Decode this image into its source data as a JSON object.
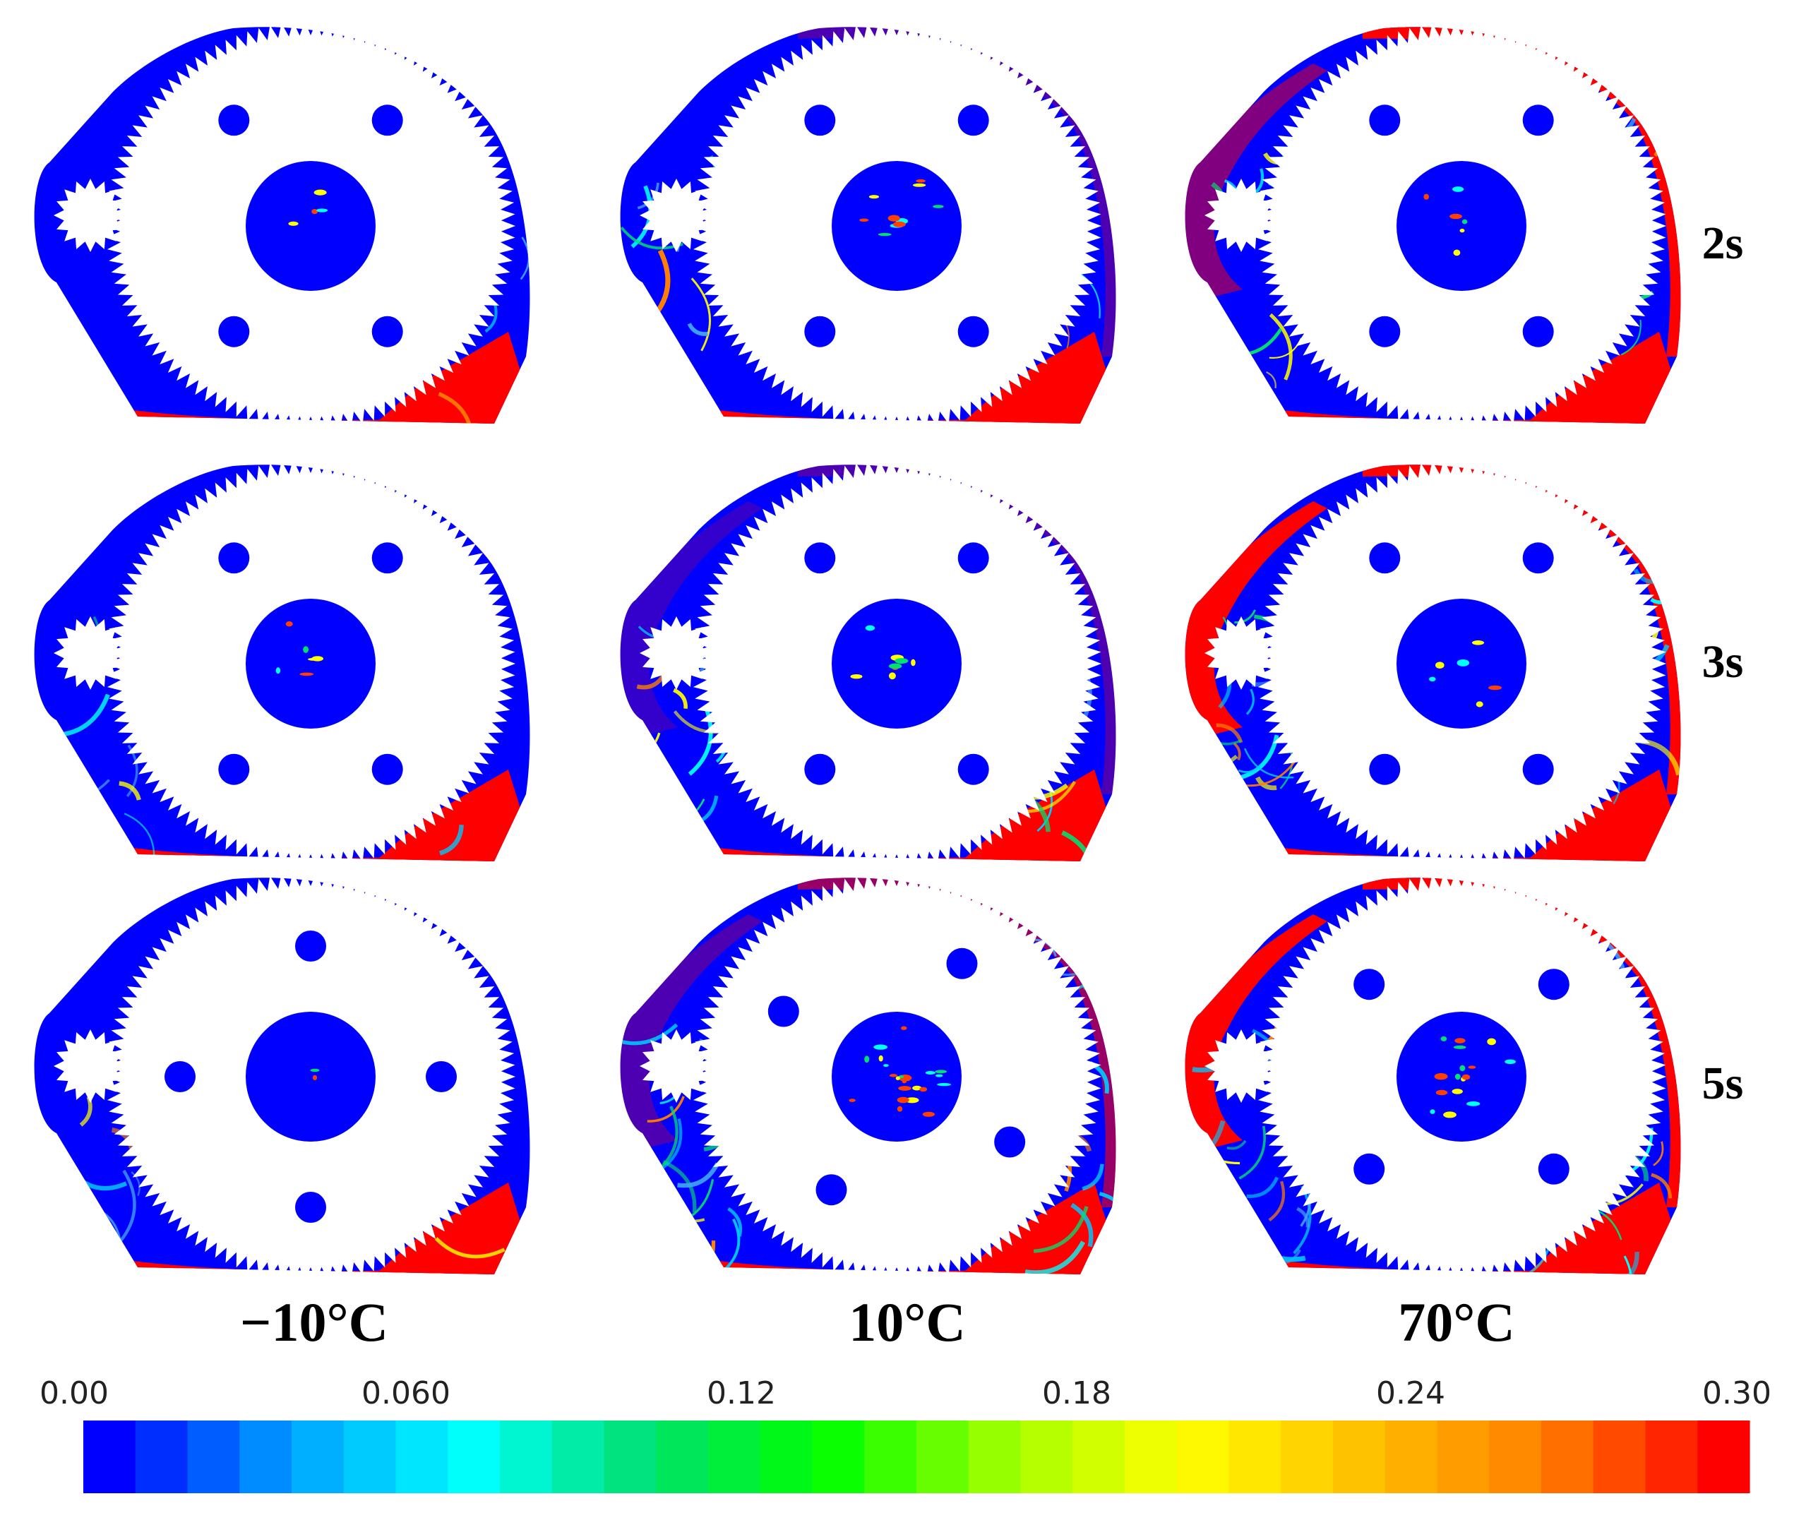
{
  "rows": [
    {
      "label": "2s"
    },
    {
      "label": "3s"
    },
    {
      "label": "5s"
    }
  ],
  "columns": [
    {
      "label": "−10°C"
    },
    {
      "label": "10°C"
    },
    {
      "label": "70°C"
    }
  ],
  "colorbar": {
    "min": 0.0,
    "max": 0.3,
    "tick_labels": [
      "0.00",
      "0.060",
      "0.12",
      "0.18",
      "0.24",
      "0.30"
    ],
    "band_count": 32,
    "colors": [
      "#0000ff",
      "#00a0ff",
      "#00ffff",
      "#00e070",
      "#00ff00",
      "#a0ff00",
      "#ffff00",
      "#ffc000",
      "#ff8000",
      "#ff0000"
    ]
  },
  "panel_colors": {
    "fluid": "#0000ff",
    "oil_rich": "#ff0000",
    "gear": "#ffffff"
  },
  "panels": [
    {
      "row": 0,
      "col": 0,
      "hole_angles": [
        -54,
        54,
        126,
        234
      ],
      "seed": 1,
      "streaks": 6,
      "left_red": 0,
      "top_red": 0,
      "hub_spots": 4
    },
    {
      "row": 0,
      "col": 1,
      "hole_angles": [
        -54,
        54,
        126,
        234
      ],
      "seed": 2,
      "streaks": 18,
      "left_red": 0,
      "top_red": 0.3,
      "hub_spots": 10
    },
    {
      "row": 0,
      "col": 2,
      "hole_angles": [
        -54,
        54,
        126,
        234
      ],
      "seed": 3,
      "streaks": 30,
      "left_red": 0.5,
      "top_red": 1,
      "hub_spots": 6
    },
    {
      "row": 1,
      "col": 0,
      "hole_angles": [
        -54,
        54,
        126,
        234
      ],
      "seed": 4,
      "streaks": 10,
      "left_red": 0,
      "top_red": 0,
      "hub_spots": 6
    },
    {
      "row": 1,
      "col": 1,
      "hole_angles": [
        -54,
        54,
        126,
        234
      ],
      "seed": 5,
      "streaks": 26,
      "left_red": 0.2,
      "top_red": 0.3,
      "hub_spots": 8
    },
    {
      "row": 1,
      "col": 2,
      "hole_angles": [
        -54,
        54,
        126,
        234
      ],
      "seed": 6,
      "streaks": 34,
      "left_red": 1,
      "top_red": 1,
      "hub_spots": 6
    },
    {
      "row": 2,
      "col": 0,
      "hole_angles": [
        -90,
        0,
        90,
        180
      ],
      "seed": 7,
      "streaks": 14,
      "left_red": 0,
      "top_red": 0,
      "hub_spots": 2
    },
    {
      "row": 2,
      "col": 1,
      "hole_angles": [
        -60,
        30,
        120,
        210
      ],
      "seed": 8,
      "streaks": 40,
      "left_red": 0.3,
      "top_red": 0.6,
      "hub_spots": 22
    },
    {
      "row": 2,
      "col": 2,
      "hole_angles": [
        -45,
        45,
        135,
        225
      ],
      "seed": 9,
      "streaks": 40,
      "left_red": 1,
      "top_red": 1,
      "hub_spots": 16
    }
  ]
}
